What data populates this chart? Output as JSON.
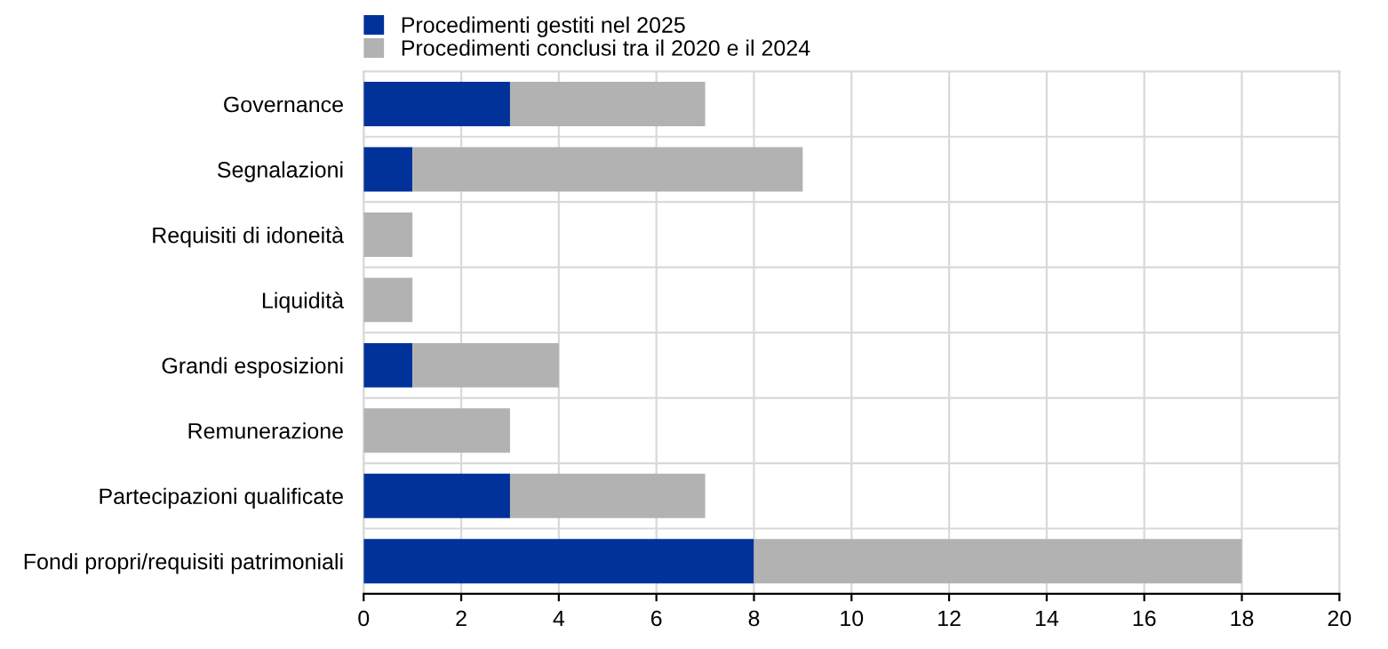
{
  "chart_data": {
    "type": "bar",
    "orientation": "horizontal",
    "stacked": true,
    "categories": [
      "Governance",
      "Segnalazioni",
      "Requisiti di idoneità",
      "Liquidità",
      "Grandi esposizioni",
      "Remunerazione",
      "Partecipazioni qualificate",
      "Fondi propri/requisiti patrimoniali"
    ],
    "series": [
      {
        "name": "Procedimenti gestiti nel 2025",
        "color": "#003299",
        "values": [
          3,
          1,
          0,
          0,
          1,
          0,
          3,
          8
        ]
      },
      {
        "name": "Procedimenti conclusi tra il 2020 e il 2024",
        "color": "#b2b2b2",
        "values": [
          4,
          8,
          1,
          1,
          3,
          3,
          4,
          10
        ]
      }
    ],
    "xlim": [
      0,
      20
    ],
    "xticks": [
      0,
      2,
      4,
      6,
      8,
      10,
      12,
      14,
      16,
      18,
      20
    ],
    "grid": true,
    "legend": "top left"
  }
}
